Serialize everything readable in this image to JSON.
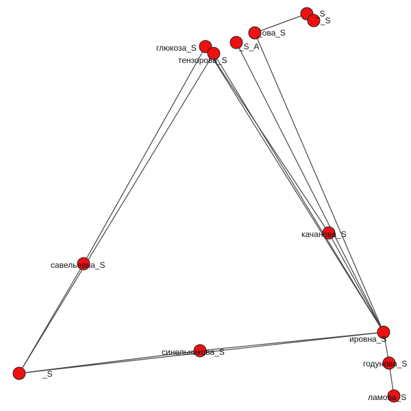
{
  "colors": {
    "node_fill": "#ee1111",
    "node_stroke": "#222222",
    "edge": "#444444",
    "background": "#ffffff"
  },
  "graph": {
    "nodes": [
      {
        "id": "top_cluster_a",
        "label": "глюкоза_S"
      },
      {
        "id": "top_cluster_b",
        "label": "тензорова_S"
      },
      {
        "id": "top_cluster_c",
        "label": "_S_A"
      },
      {
        "id": "top_cluster_d",
        "label": "_ова_S"
      },
      {
        "id": "topright_a",
        "label": "_S"
      },
      {
        "id": "topright_b",
        "label": "_S"
      },
      {
        "id": "kachanova",
        "label": "качанова_S"
      },
      {
        "id": "savelievna",
        "label": "савельевна_S"
      },
      {
        "id": "sinelnikova",
        "label": "синельникова_S"
      },
      {
        "id": "right_cluster_a",
        "label": "ировна_S"
      },
      {
        "id": "bottomright_a",
        "label": "годунова_S"
      },
      {
        "id": "bottomright_b",
        "label": "ламова_S"
      },
      {
        "id": "left_cluster_a",
        "label": "_S"
      }
    ],
    "edges": [
      [
        "top_cluster_a",
        "right_cluster_a"
      ],
      [
        "top_cluster_b",
        "right_cluster_a"
      ],
      [
        "top_cluster_c",
        "right_cluster_a"
      ],
      [
        "top_cluster_d",
        "right_cluster_a"
      ],
      [
        "top_cluster_a",
        "kachanova"
      ],
      [
        "kachanova",
        "right_cluster_a"
      ],
      [
        "top_cluster_a",
        "savelievna"
      ],
      [
        "savelievna",
        "left_cluster_a"
      ],
      [
        "top_cluster_b",
        "left_cluster_a"
      ],
      [
        "left_cluster_a",
        "sinelnikova"
      ],
      [
        "sinelnikova",
        "right_cluster_a"
      ],
      [
        "left_cluster_a",
        "right_cluster_a"
      ],
      [
        "top_cluster_d",
        "topright_a"
      ],
      [
        "topright_a",
        "topright_b"
      ],
      [
        "right_cluster_a",
        "bottomright_a"
      ],
      [
        "bottomright_a",
        "bottomright_b"
      ]
    ]
  }
}
